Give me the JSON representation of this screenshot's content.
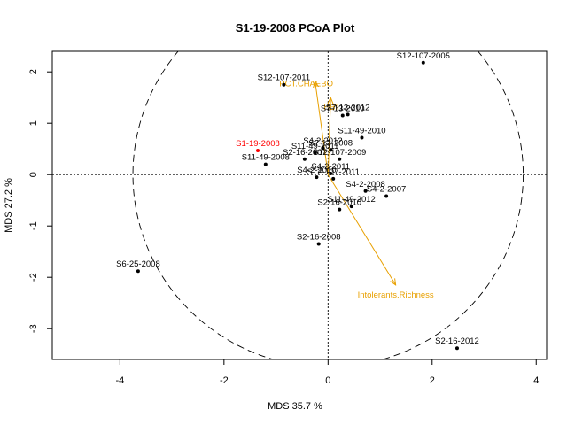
{
  "chart_data": {
    "type": "scatter",
    "title": "S1-19-2008 PCoA Plot",
    "xlabel": "MDS  35.7 %",
    "ylabel": "MDS  27.2 %",
    "xlim": [
      -5.3,
      4.2
    ],
    "ylim": [
      -3.6,
      2.4
    ],
    "xticks": [
      -4,
      -2,
      0,
      2,
      4
    ],
    "yticks": [
      -3,
      -2,
      -1,
      0,
      1,
      2
    ],
    "circle_radius": 3.75,
    "reference_lines": {
      "x": 0,
      "y": 0
    },
    "grid": false,
    "highlight_color": "#ff0000",
    "point_color": "#000000",
    "vector_color": "#e8a000",
    "points": [
      {
        "label": "S1-19-2008",
        "x": -1.35,
        "y": 0.47,
        "highlight": true
      },
      {
        "label": "S12-107-2005",
        "x": 1.83,
        "y": 2.18
      },
      {
        "label": "S12-107-2011",
        "x": -0.85,
        "y": 1.75
      },
      {
        "label": "S7-13-2010",
        "x": 0.28,
        "y": 1.15
      },
      {
        "label": "S7-13-2012",
        "x": 0.38,
        "y": 1.17
      },
      {
        "label": "S11-49-2010",
        "x": 0.65,
        "y": 0.72
      },
      {
        "label": "S4-2-2012",
        "x": -0.1,
        "y": 0.52
      },
      {
        "label": "S7-13-2008",
        "x": 0.05,
        "y": 0.48
      },
      {
        "label": "S11-49-2011",
        "x": -0.25,
        "y": 0.42
      },
      {
        "label": "S12-107-2009",
        "x": 0.22,
        "y": 0.3
      },
      {
        "label": "S11-49-2008",
        "x": -1.2,
        "y": 0.2
      },
      {
        "label": "S2-16-2007",
        "x": -0.45,
        "y": 0.3
      },
      {
        "label": "S4-2-2011",
        "x": 0.05,
        "y": 0.02
      },
      {
        "label": "S4-2-2010",
        "x": -0.22,
        "y": -0.05
      },
      {
        "label": "S12-107-2011",
        "x": 0.1,
        "y": -0.08
      },
      {
        "label": "S4-2-2008",
        "x": 0.72,
        "y": -0.32
      },
      {
        "label": "S4-2-2007",
        "x": 1.12,
        "y": -0.42
      },
      {
        "label": "S11-49-2012",
        "x": 0.45,
        "y": -0.62
      },
      {
        "label": "S2-16-2010",
        "x": 0.22,
        "y": -0.68
      },
      {
        "label": "S2-16-2008",
        "x": -0.18,
        "y": -1.35
      },
      {
        "label": "S6-25-2008",
        "x": -3.65,
        "y": -1.88
      },
      {
        "label": "S2-16-2012",
        "x": 2.48,
        "y": -3.38
      }
    ],
    "vectors": [
      {
        "label": "PCT.CHAEBO",
        "x": -0.25,
        "y": 1.82
      },
      {
        "label": "HBI",
        "x": 0.05,
        "y": 1.5
      },
      {
        "label": "Intolerants.Richness",
        "x": 1.3,
        "y": -2.15
      }
    ]
  }
}
